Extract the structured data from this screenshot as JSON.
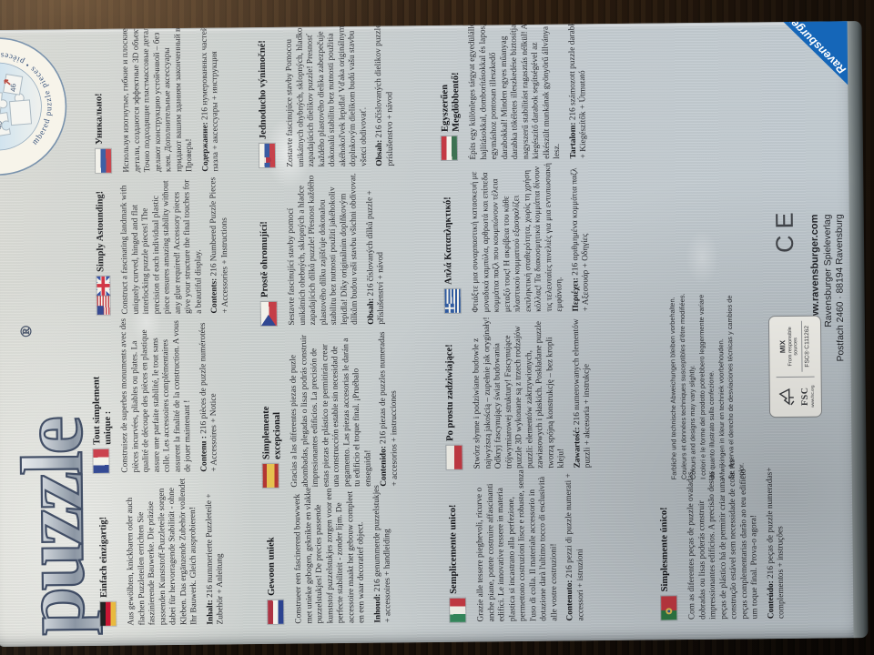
{
  "logo": {
    "wordmark": "puzzle",
    "registered": "®"
  },
  "badge": {
    "arc_text": "mbered puzzle pieces • pièces de puzzle numérot",
    "full_text": "numbered puzzle pieces • pièces de puzzle numérotées",
    "piece_numbers": [
      "45",
      "46"
    ]
  },
  "brand": {
    "name": "Ravensburger",
    "accent_blue": "#1566b8"
  },
  "blocks": [
    {
      "id": "de",
      "language": "german",
      "flags": [
        "de"
      ],
      "heading": "Einfach einzigartig!",
      "body": "Aus gewölbten, knickbaren oder auch flachen Puzzleteilen errichten Sie faszinierende Bauwerke. Die präzise passenden Kunststoff-Puzzleteile sorgen dabei für hervorragende Stabilität - ohne Kleben. Das ergänzende Zubehör vollendet Ihr Bauwerk. Gleich ausprobieren!",
      "contents_label": "Inhalt:",
      "contents": "216 nummerierte Puzzleteile + Zubehör + Anleitung"
    },
    {
      "id": "fr",
      "language": "french",
      "flags": [
        "fr"
      ],
      "heading": "Tout simplement\nunique :",
      "body": "Construisez de superbes monuments avec des pièces incurvées, pliables ou plates. La qualité de découpe des pièces en plastique assure une parfaite stabilité, le tout sans colle. Les accessoires complémentaires assurent la finalité de la construction. A vous de jouer maintenant !",
      "contents_label": "Contenu :",
      "contents": "216 pièces de puzzle numérotées + Accessoires + Notice"
    },
    {
      "id": "en",
      "language": "english",
      "flags": [
        "us",
        "uk"
      ],
      "heading": "Simply Astounding!",
      "body": "Construct a fascinating landmark with uniquely curved, hinged and flat interlocking puzzle pieces! The precision of each individual plastic piece ensures amazing stability without any glue required! Accessory pieces give your structure the final touches for a beautiful display.",
      "contents_label": "Contents:",
      "contents": "216 Numbered Puzzle Pieces + Accessories + Instructions"
    },
    {
      "id": "ru",
      "language": "russian",
      "flags": [
        "ru"
      ],
      "heading": "Уникально!",
      "body": "Используя изогнутые, гибкие и плоские детали, создаются эффектные 3D объекты. Точно подходящие пластмассовые детали делают конструкцию устойчивой – без клея. Дополнительные аксессуары придают вашим зданиям законченный вид. Проверь!",
      "contents_label": "Содержание:",
      "contents": "216 нумерованных частей пазла + аксессуары + инструкция"
    },
    {
      "id": "nl",
      "language": "dutch",
      "flags": [
        "nl"
      ],
      "heading": "Gewoon uniek",
      "body": "Construeer een fascinerend bouwwerk met unieke gebogen, geknikte en vlakke puzzelstukjes! De precies passende kunststof puzzelstukjes zorgen voor een perfecte stabiliteit - zonder lijm. De accessoire maakt het gebouw compleet en een waar decoratief object.",
      "contents_label": "Inhoud:",
      "contents": "216 genummerde puzzelstukjes + accessoires + handleiding"
    },
    {
      "id": "es",
      "language": "spanish",
      "flags": [
        "es"
      ],
      "heading": "Simplemente\nexcepcional",
      "body": "Gracias a las diferentes piezas de puzle abombadas, plegadas o lisas podrás construir impresionantes edificios. La precisión de estas piezas de plástico te permitirán crear una construcción estable sin necesidad de pegamento. Las piezas accesorias le darán a tu edificio el toque final. ¡Pruébalo enseguida!",
      "contents_label": "Contenido:",
      "contents": "216 piezas de puzzles numeradas + accesorios + instrucciones"
    },
    {
      "id": "cz",
      "language": "czech",
      "flags": [
        "cz"
      ],
      "heading": "Prostě ohromující!",
      "body": "Sestavte fascinující stavby pomocí unikátních ohebných, sklopných a hladce zapadajících dílků puzzle! Přesnost každého plastového dílku zajišťuje dokonalou stabilitu bez nutnosti použití jakéhokoliv lepidla! Díky originálním doplňkovým dílkům budou vaši stavbu všichni obdivovat.",
      "contents_label": "Obsah:",
      "contents": "216 číslovaných dílků puzzle + příslušenství + návod"
    },
    {
      "id": "sk",
      "language": "slovak",
      "flags": [
        "sk"
      ],
      "heading": "Jednoducho výnimočné!",
      "body": "Zostavte fascinujúce stavby Pomocou unikátnych ohybných, sklopných, hladko zapadajúcich dielikov puzzle! Presnosť každého plastového dielika zabezpečuje dokonalú stabilitu bez nutnosti použitia akéhokoľvek lepidla! Vďaka originálnym doplnkovým dielikom budú vašu stavbu všetci obdivovať.",
      "contents_label": "Obsah:",
      "contents": "216 očíslovaných dielikov puzzle + príslušenstvo + návod"
    },
    {
      "id": "it",
      "language": "italian",
      "flags": [
        "it"
      ],
      "heading": "Semplicemente unico!",
      "body": "Grazie alle tessere pieghevoli, ricurve o anche piane, potete costruire affascinanti edifici. Le innovative tessere in materia plastica si incastrano alla perfezione, permettono costruzioni lisce e robuste, senza l'uso di colla. Il materiale accessorio in dotazione darà l'ultimo tocco di esclusività alle vostre costruzioni!",
      "contents_label": "Contenuto:",
      "contents": "216 pezzi di puzzle numerati + accessori + istruzioni"
    },
    {
      "id": "pl",
      "language": "polish",
      "flags": [
        "pl"
      ],
      "heading": "Po prostu zadziwiające!",
      "body": "Stwórz słynne i podziwiane budowle z najwyższą jakością – zupełnie jak oryginały! Odkryj fascynujący świat budowania trójwymiarowej struktury! Fascynujące puzzle 3D wykonane są z trzech rodzajów puzzli: elementów zakrzywionych, zawiasowych i płaskich. Poskładane puzzle tworzą spójną konstrukcję – bez kropli kleju!",
      "contents_label": "Zawartość:",
      "contents": "216 numerowanych elementów puzzli + akcesoria + instrukcje"
    },
    {
      "id": "el",
      "language": "greek",
      "flags": [
        "el"
      ],
      "heading": "Απλά Καταπληκτικό!",
      "body": "Φτιάξτε μια συναρπαστική κατασκευή με μοναδικά καμπύλα, αρθρωτά και επίπεδα κομμάτια παζλ που κουμπώνουν τέλεια μεταξύ τους! Η ακρίβεια του κάθε πλαστικού κομματιού εξασφαλίζει εκπληκτική σταθερότητα, χωρίς τη χρήση κόλλας! Τα διακοσμητικά κομμάτια δίνουν τις τελευταίες πινελιές για μια εντυπωσιακή εμφάνιση.",
      "contents_label": "Περιέχει:",
      "contents": "216 αριθμημένα κομμάτια παζλ + Αξεσουάρ + Οδηγίες"
    },
    {
      "id": "hu",
      "language": "hungarian",
      "flags": [
        "hu"
      ],
      "heading": "Egyszerűen\nMegdöbbentő!",
      "body": "Építs egy különleges tárgyat egyedülálló hajlításokkal, domborításokkal és lapos, egymáshoz pontosan illeszkedő darabokkal! Minden egyes műanyag darabka tökéletes illeszkedése biztosítja a nagyszerű stabilitást ragasztás nélkül! A kiegészítő darabok segítségével az elkészült munkának gyönyörű állványa is lesz.",
      "contents_label": "Tartalom:",
      "contents": "216 számozott puzzle darabka + Kiegészítők + Útmutató"
    },
    {
      "id": "pt",
      "language": "portuguese",
      "flags": [
        "pt"
      ],
      "heading": "Simplesmente único!",
      "body": "Com as diferentes peças de puzzle ovaladas, dobradas ou lisas poderás construir impressionantes edifícios. A precisão destas peças de plástico há de permitir criar uma construção estável sem necessidade de cola. As peças complementarias darão ao teu edifício um toque final. Prova-o agora!",
      "contents_label": "Conteúdo:",
      "contents": "216 peças de puzzle numeradas+ complementos + instruções"
    }
  ],
  "legal": {
    "text": "Farbliche und technische Abweichungen bleiben vorbehalten.\nCouleurs et données techniques susceptibles d'être modifiées.\nColours and designs may vary slightly.\nI colori e le forme del prodotto potrebbero leggermente variare\nda quanto illustrato sulla confezione.\nAfwijkingen in kleur en techniek voorbehouden.\nSe reserva el derecho de desviaciones técnicas y cambios de color."
  },
  "contact": {
    "website": "www.ravensburger.com",
    "publisher": "Ravensburger Spieleverlag",
    "address": "Postfach 2460 · 88194 Ravensburg"
  },
  "fsc": {
    "word": "FSC",
    "url": "www.fsc.org",
    "mix": "MIX",
    "sources": "From responsible sources",
    "code": "FSC® C111262"
  },
  "ce_mark": "CE"
}
